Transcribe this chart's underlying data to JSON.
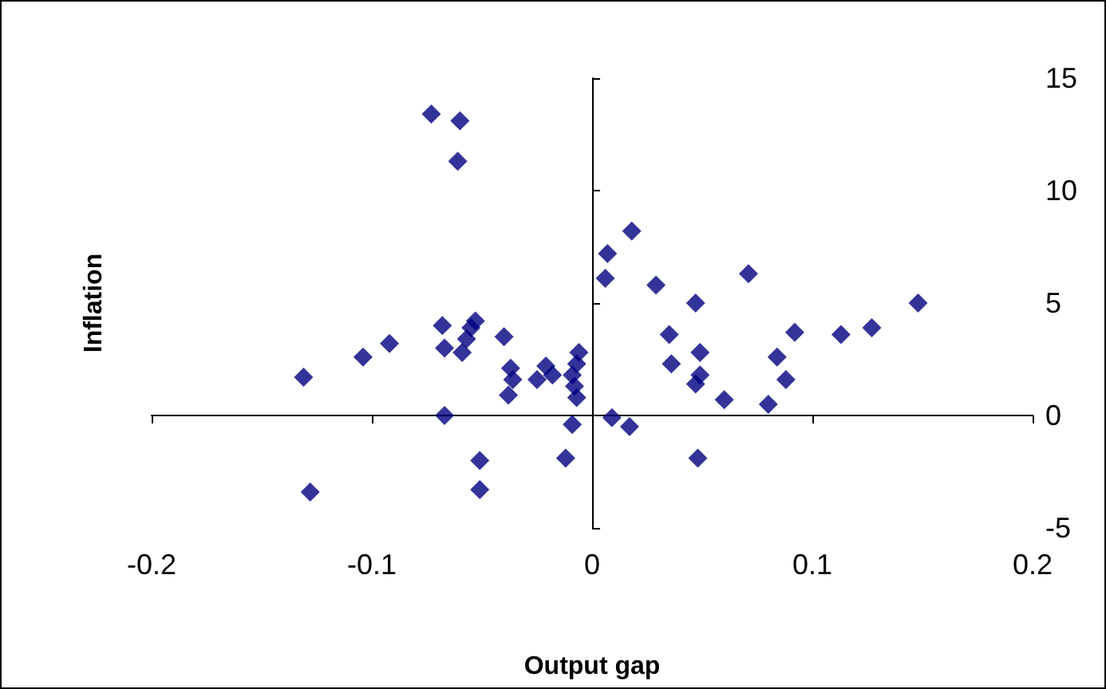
{
  "chart_data": {
    "type": "scatter",
    "xlabel": "Output gap",
    "ylabel": "Inflation",
    "marker": "diamond",
    "xlim": [
      -0.2,
      0.2
    ],
    "xticks": [
      -0.2,
      -0.1,
      0,
      0.1,
      0.2
    ],
    "ylim": [
      -5,
      15
    ],
    "yticks": [
      -5,
      0,
      5,
      10,
      15
    ],
    "series": [
      {
        "color": "#000080",
        "x": [
          -0.131,
          -0.128,
          -0.104,
          -0.092,
          -0.073,
          -0.06,
          -0.061,
          -0.068,
          -0.067,
          -0.067,
          -0.059,
          -0.057,
          -0.055,
          -0.053,
          -0.051,
          -0.051,
          -0.04,
          -0.037,
          -0.036,
          -0.038,
          -0.025,
          -0.021,
          -0.018,
          -0.012,
          -0.009,
          -0.008,
          -0.007,
          -0.007,
          -0.009,
          -0.006,
          0.007,
          0.006,
          0.018,
          0.029,
          0.047,
          0.035,
          0.036,
          0.049,
          0.049,
          0.047,
          0.06,
          0.071,
          0.08,
          0.084,
          0.088,
          0.092,
          0.113,
          0.127,
          0.148,
          0.009,
          0.017,
          0.048
        ],
        "values": [
          1.7,
          -3.4,
          2.6,
          3.2,
          13.4,
          13.1,
          11.3,
          4.0,
          3.0,
          0.0,
          2.8,
          3.4,
          3.9,
          4.2,
          -2.0,
          -3.3,
          3.5,
          2.1,
          1.6,
          0.9,
          1.6,
          2.2,
          1.8,
          -1.9,
          1.8,
          1.3,
          2.3,
          0.8,
          -0.4,
          2.8,
          7.2,
          6.1,
          8.2,
          5.8,
          5.0,
          3.6,
          2.3,
          2.8,
          1.8,
          1.4,
          0.7,
          6.3,
          0.5,
          2.6,
          1.6,
          3.7,
          3.6,
          3.9,
          5.0,
          -0.1,
          -0.5,
          -1.9
        ]
      }
    ]
  }
}
